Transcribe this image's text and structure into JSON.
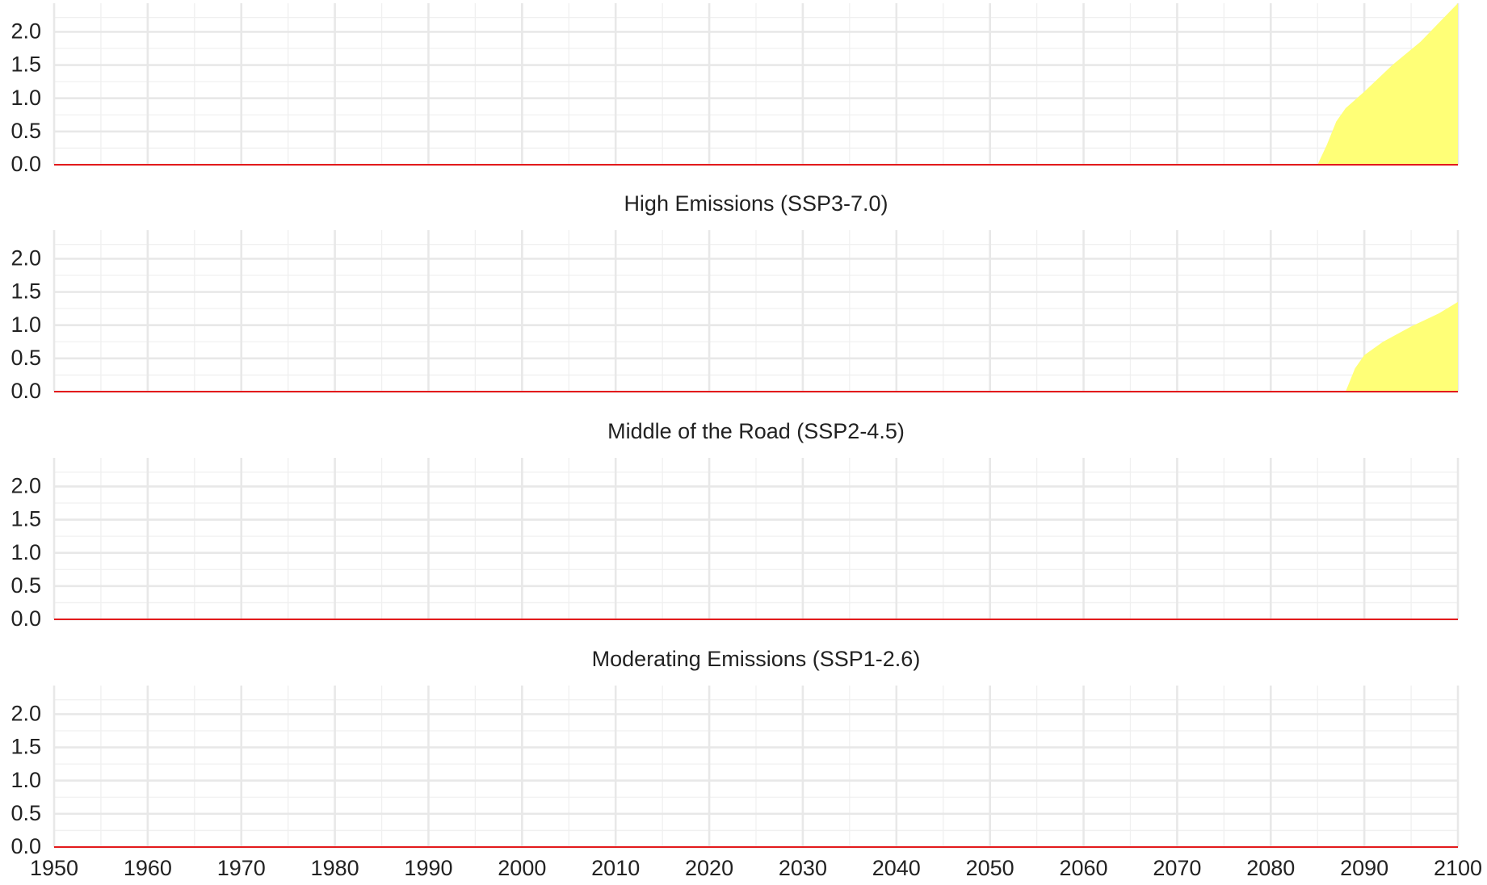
{
  "chart_data": [
    {
      "type": "area",
      "title": null,
      "x": [
        2085,
        2086,
        2087,
        2088,
        2090,
        2093,
        2096,
        2100
      ],
      "values": [
        0,
        0.3,
        0.65,
        0.85,
        1.1,
        1.5,
        1.85,
        2.43
      ],
      "color": "#ffff77",
      "xlim": [
        1950,
        2100
      ],
      "xticks": [
        1950,
        1960,
        1970,
        1980,
        1990,
        2000,
        2010,
        2020,
        2030,
        2040,
        2050,
        2060,
        2070,
        2080,
        2090,
        2100
      ],
      "ylim": [
        0,
        2.43
      ],
      "yticks": [
        {
          "value": 0,
          "label": "0.0"
        },
        {
          "value": 0.5,
          "label": "0.5"
        },
        {
          "value": 1,
          "label": "1.0"
        },
        {
          "value": 1.5,
          "label": "1.5"
        },
        {
          "value": 2,
          "label": "2.0"
        }
      ],
      "grid": true,
      "baseline_color": "#e31a1c"
    },
    {
      "type": "area",
      "title": "High Emissions (SSP3-7.0)",
      "x": [
        2088,
        2089,
        2090,
        2092,
        2095,
        2098,
        2100
      ],
      "values": [
        0,
        0.35,
        0.55,
        0.75,
        0.98,
        1.18,
        1.35
      ],
      "color": "#ffff77",
      "xlim": [
        1950,
        2100
      ],
      "xticks": [
        1950,
        1960,
        1970,
        1980,
        1990,
        2000,
        2010,
        2020,
        2030,
        2040,
        2050,
        2060,
        2070,
        2080,
        2090,
        2100
      ],
      "ylim": [
        0,
        2.43
      ],
      "yticks": [
        {
          "value": 0,
          "label": "0.0"
        },
        {
          "value": 0.5,
          "label": "0.5"
        },
        {
          "value": 1,
          "label": "1.0"
        },
        {
          "value": 1.5,
          "label": "1.5"
        },
        {
          "value": 2,
          "label": "2.0"
        }
      ],
      "grid": true,
      "baseline_color": "#e31a1c"
    },
    {
      "type": "area",
      "title": "Middle of the Road (SSP2-4.5)",
      "x": [],
      "values": [],
      "color": "#ffff77",
      "xlim": [
        1950,
        2100
      ],
      "xticks": [
        1950,
        1960,
        1970,
        1980,
        1990,
        2000,
        2010,
        2020,
        2030,
        2040,
        2050,
        2060,
        2070,
        2080,
        2090,
        2100
      ],
      "ylim": [
        0,
        2.43
      ],
      "yticks": [
        {
          "value": 0,
          "label": "0.0"
        },
        {
          "value": 0.5,
          "label": "0.5"
        },
        {
          "value": 1,
          "label": "1.0"
        },
        {
          "value": 1.5,
          "label": "1.5"
        },
        {
          "value": 2,
          "label": "2.0"
        }
      ],
      "grid": true,
      "baseline_color": "#e31a1c"
    },
    {
      "type": "area",
      "title": "Moderating Emissions (SSP1-2.6)",
      "x": [],
      "values": [],
      "color": "#ffff77",
      "xlim": [
        1950,
        2100
      ],
      "xticks": [
        1950,
        1960,
        1970,
        1980,
        1990,
        2000,
        2010,
        2020,
        2030,
        2040,
        2050,
        2060,
        2070,
        2080,
        2090,
        2100
      ],
      "ylim": [
        0,
        2.43
      ],
      "yticks": [
        {
          "value": 0,
          "label": "0.0"
        },
        {
          "value": 0.5,
          "label": "0.5"
        },
        {
          "value": 1,
          "label": "1.0"
        },
        {
          "value": 1.5,
          "label": "1.5"
        },
        {
          "value": 2,
          "label": "2.0"
        }
      ],
      "grid": true,
      "baseline_color": "#e31a1c"
    }
  ]
}
